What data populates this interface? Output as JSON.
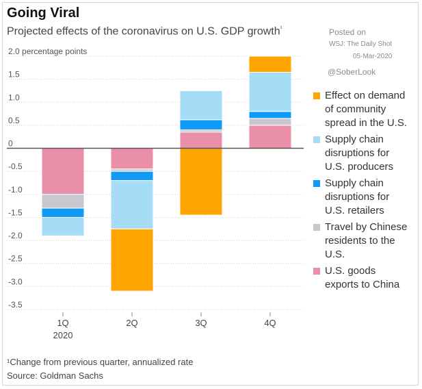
{
  "header": {
    "title": "Going Viral",
    "subtitle": "Projected effects of the coronavirus on U.S. GDP growth",
    "subtitle_mark": "¹"
  },
  "watermark": {
    "posted_label": "Posted on",
    "source_line": "WSJ: The Daily Shot",
    "date": "05-Mar-2020",
    "handle": "@SoberLook"
  },
  "footer": {
    "footnote": "¹Change from previous quarter, annualized rate",
    "source": "Source: Goldman Sachs"
  },
  "colors": {
    "demand": "#ffa500",
    "supply_producers": "#a7dcf6",
    "supply_retailers": "#0f9bf5",
    "travel": "#c8c8d0",
    "exports": "#e98fa8",
    "axis": "#555555",
    "grid": "#cfcfcf"
  },
  "chart_data": {
    "type": "bar",
    "stacked": true,
    "title": "Going Viral",
    "subtitle": "Projected effects of the coronavirus on U.S. GDP growth",
    "ylabel": "percentage points",
    "ylim": [
      -3.5,
      2.0
    ],
    "yticks": [
      2.0,
      1.5,
      1.0,
      0.5,
      0,
      -0.5,
      -1.0,
      -1.5,
      -2.0,
      -2.5,
      -3.0,
      -3.5
    ],
    "ytick_labels": [
      "2.0 percentage points",
      "1.5",
      "1.0",
      "0.5",
      "0",
      "-0.5",
      "-1.0",
      "-1.5",
      "-2.0",
      "-2.5",
      "-3.0",
      "-3.5"
    ],
    "categories": [
      "1Q",
      "2Q",
      "3Q",
      "4Q"
    ],
    "category_sublabels": [
      "2020",
      "",
      "",
      ""
    ],
    "series": [
      {
        "key": "exports",
        "name": "U.S. goods exports to China",
        "values": [
          -1.0,
          -0.45,
          0.35,
          0.5
        ]
      },
      {
        "key": "travel",
        "name": "Travel by Chinese residents to the U.S.",
        "values": [
          -0.3,
          -0.05,
          0.05,
          0.15
        ]
      },
      {
        "key": "supply_retailers",
        "name": "Supply chain disruptions for U.S. retailers",
        "values": [
          -0.2,
          -0.2,
          0.22,
          0.15
        ]
      },
      {
        "key": "supply_producers",
        "name": "Supply chain disruptions for U.S. producers",
        "values": [
          -0.4,
          -1.05,
          0.63,
          0.85
        ]
      },
      {
        "key": "demand",
        "name": "Effect on demand of community spread in the U.S.",
        "values": [
          0,
          -1.35,
          -1.45,
          0.35
        ]
      }
    ],
    "legend_order": [
      "demand",
      "supply_producers",
      "supply_retailers",
      "travel",
      "exports"
    ],
    "legend_lines": {
      "demand": [
        "Effect on demand",
        "of community",
        "spread in the U.S."
      ],
      "supply_producers": [
        "Supply chain",
        "disruptions for",
        "U.S. producers"
      ],
      "supply_retailers": [
        "Supply chain",
        "disruptions for",
        "U.S. retailers"
      ],
      "travel": [
        "Travel by Chinese",
        "residents to the",
        "U.S."
      ],
      "exports": [
        "U.S. goods",
        "exports to China"
      ]
    },
    "legend_position": "right"
  }
}
